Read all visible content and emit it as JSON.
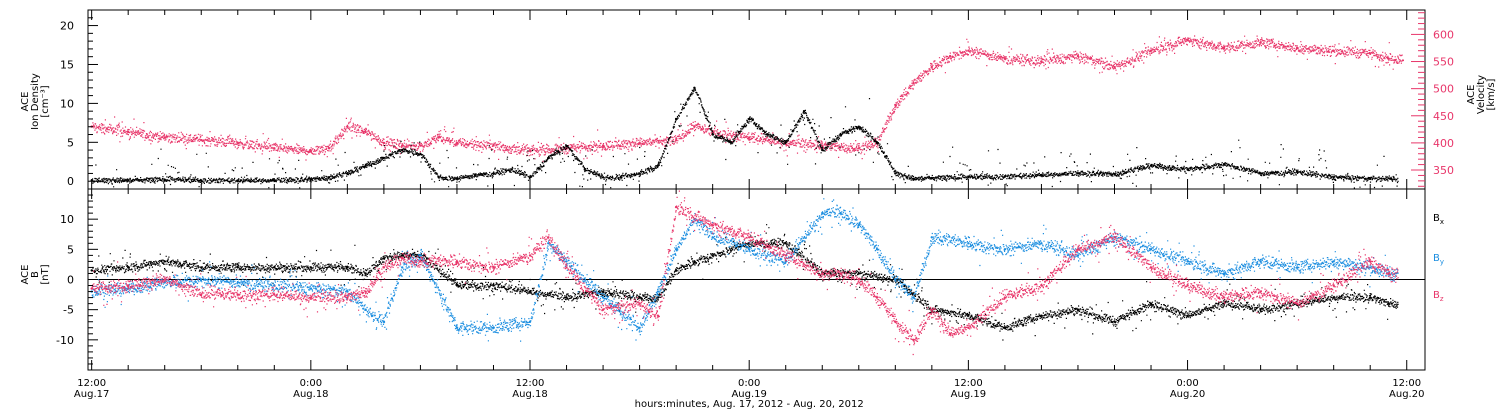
{
  "colors": {
    "density": "#000000",
    "velocity": "#e8366a",
    "bx": "#000000",
    "by": "#1c8ee0",
    "bz": "#e8366a",
    "axis": "#000000"
  },
  "x_axis": {
    "title": "hours:minutes, Aug. 17, 2012 - Aug. 20, 2012",
    "range_hours": [
      -0.2,
      73
    ],
    "ticks": [
      {
        "hour": 0,
        "time": "12:00",
        "date": "Aug.17"
      },
      {
        "hour": 12,
        "time": "0:00",
        "date": "Aug.18"
      },
      {
        "hour": 24,
        "time": "12:00",
        "date": "Aug.18"
      },
      {
        "hour": 36,
        "time": "0:00",
        "date": "Aug.19"
      },
      {
        "hour": 48,
        "time": "12:00",
        "date": "Aug.19"
      },
      {
        "hour": 60,
        "time": "0:00",
        "date": "Aug.20"
      },
      {
        "hour": 72,
        "time": "12:00",
        "date": "Aug.20"
      }
    ],
    "minor_step_hours": 2,
    "ticklabel_texts": [
      "12:00",
      "Aug.17",
      "0:00",
      "Aug.18",
      "12:00",
      "Aug.18",
      "0:00",
      "Aug.19",
      "12:00",
      "Aug.19",
      "0:00",
      "Aug.20",
      "12:00",
      "Aug.20"
    ]
  },
  "chart_data": [
    {
      "type": "scatter",
      "panel": "top",
      "ylabel_lines": [
        "ACE",
        "Ion Density",
        "[cm⁻³]"
      ],
      "ylim": [
        -1,
        22
      ],
      "yticks": [
        0,
        5,
        10,
        15,
        20
      ],
      "ytick_labels": [
        "0",
        "5",
        "10",
        "15",
        "20"
      ],
      "grid": false,
      "series": [
        {
          "key": "density",
          "color": "#000000",
          "x": [
            0,
            2,
            4,
            6,
            8,
            10,
            12,
            13,
            14,
            15,
            16,
            17,
            18,
            19,
            20,
            21,
            22,
            23,
            24,
            25,
            26,
            27,
            28,
            29,
            30,
            31,
            32,
            33,
            34,
            35,
            36,
            37,
            38,
            39,
            40,
            41,
            42,
            43,
            44,
            45,
            46,
            48,
            50,
            52,
            54,
            56,
            58,
            60,
            62,
            64,
            66,
            68,
            70
          ],
          "y": [
            0.1,
            0.1,
            0.2,
            0.1,
            0.1,
            0.1,
            0.2,
            0.5,
            1.0,
            2.0,
            3.0,
            4.0,
            3.5,
            0.5,
            0.3,
            0.8,
            1.0,
            1.5,
            0.5,
            3.0,
            4.5,
            1.5,
            0.5,
            0.5,
            1.0,
            2.0,
            8.0,
            12.0,
            6.0,
            5.0,
            8.0,
            6.0,
            5.0,
            9.0,
            4.0,
            6.0,
            7.0,
            5.0,
            1.0,
            0.3,
            0.4,
            0.5,
            0.6,
            0.8,
            1.0,
            0.9,
            2.0,
            1.5,
            2.2,
            1.0,
            1.2,
            0.5,
            0.3
          ]
        }
      ],
      "right_axis": {
        "ylabel_lines": [
          "ACE",
          "Velocity",
          "[km/s]"
        ],
        "ylim": [
          315,
          645
        ],
        "yticks": [
          350,
          400,
          450,
          500,
          550,
          600
        ],
        "ytick_labels": [
          "350",
          "400",
          "450",
          "500",
          "550",
          "600"
        ],
        "series": [
          {
            "key": "velocity",
            "color": "#e8366a",
            "x": [
              0,
              2,
              4,
              6,
              8,
              10,
              12,
              13,
              14,
              15,
              16,
              17,
              18,
              19,
              20,
              22,
              24,
              26,
              28,
              30,
              32,
              33,
              34,
              36,
              38,
              40,
              42,
              43,
              44,
              45,
              46,
              47,
              48,
              50,
              52,
              54,
              56,
              58,
              60,
              62,
              64,
              66,
              68,
              70,
              71
            ],
            "y": [
              430,
              420,
              410,
              405,
              400,
              390,
              385,
              390,
              430,
              420,
              400,
              395,
              395,
              410,
              400,
              395,
              385,
              390,
              395,
              400,
              405,
              430,
              420,
              410,
              400,
              395,
              390,
              400,
              470,
              510,
              540,
              560,
              570,
              555,
              550,
              560,
              540,
              570,
              590,
              575,
              585,
              575,
              570,
              565,
              555
            ]
          }
        ]
      }
    },
    {
      "type": "scatter",
      "panel": "bottom",
      "ylabel_lines": [
        "ACE",
        "B",
        "[nT]"
      ],
      "ylim": [
        -15,
        15
      ],
      "yticks": [
        -10,
        -5,
        0,
        5,
        10
      ],
      "ytick_labels": [
        "-10",
        "-5",
        "0",
        "5",
        "10"
      ],
      "zero_line": true,
      "grid": false,
      "series": [
        {
          "key": "bx",
          "name": "Bₓ",
          "color": "#000000",
          "x": [
            0,
            2,
            4,
            6,
            8,
            10,
            12,
            14,
            15,
            16,
            17,
            18,
            20,
            22,
            24,
            26,
            28,
            30,
            31,
            32,
            33,
            34,
            36,
            38,
            40,
            42,
            44,
            46,
            48,
            50,
            52,
            54,
            56,
            58,
            60,
            62,
            64,
            66,
            68,
            70,
            71
          ],
          "y": [
            1.5,
            2.0,
            3.0,
            2.0,
            2.0,
            2.0,
            2.0,
            2.0,
            1.0,
            3.5,
            4.0,
            4.0,
            -1.0,
            -1.0,
            -2.0,
            -3.0,
            -2.0,
            -3.0,
            -3.0,
            1.5,
            3.0,
            4.0,
            6.0,
            6.0,
            1.0,
            1.0,
            0.0,
            -5.0,
            -6.0,
            -8.0,
            -6.0,
            -5.0,
            -7.0,
            -4.0,
            -6.0,
            -4.0,
            -5.0,
            -4.0,
            -3.0,
            -3.0,
            -4.0
          ]
        },
        {
          "key": "by",
          "name": "B_y",
          "color": "#1c8ee0",
          "x": [
            0,
            2,
            4,
            6,
            8,
            10,
            12,
            14,
            15,
            16,
            17,
            18,
            20,
            22,
            24,
            25,
            26,
            28,
            30,
            31,
            32,
            33,
            34,
            36,
            38,
            40,
            41,
            42,
            43,
            44,
            45,
            46,
            48,
            50,
            52,
            54,
            56,
            58,
            60,
            62,
            64,
            66,
            68,
            70,
            71
          ],
          "y": [
            -2.0,
            -1.5,
            -0.5,
            0.0,
            -0.5,
            -1.0,
            -1.5,
            -2.0,
            -5.0,
            -7.0,
            2.0,
            4.0,
            -8.0,
            -8.0,
            -7.0,
            6.0,
            3.0,
            -3.0,
            -8.0,
            -2.0,
            5.0,
            10.0,
            7.0,
            5.0,
            3.0,
            11.0,
            11.0,
            9.0,
            5.0,
            0.0,
            -3.0,
            7.0,
            6.0,
            5.0,
            6.0,
            4.0,
            7.0,
            5.0,
            3.0,
            1.0,
            3.0,
            2.0,
            3.0,
            2.0,
            1.0
          ]
        },
        {
          "key": "bz",
          "name": "B_z",
          "color": "#e8366a",
          "x": [
            0,
            2,
            4,
            6,
            8,
            10,
            12,
            14,
            15,
            16,
            17,
            18,
            20,
            22,
            24,
            25,
            26,
            28,
            30,
            31,
            32,
            34,
            36,
            38,
            40,
            41,
            42,
            43,
            44,
            45,
            46,
            47,
            48,
            50,
            52,
            54,
            56,
            58,
            60,
            62,
            64,
            66,
            68,
            70,
            71
          ],
          "y": [
            -1.5,
            -1.0,
            0.0,
            -2.5,
            -2.5,
            -2.5,
            -3.0,
            -3.0,
            -2.0,
            2.0,
            3.5,
            3.0,
            3.0,
            2.0,
            4.0,
            7.0,
            2.0,
            -5.0,
            -4.0,
            -6.0,
            12.0,
            9.0,
            7.0,
            4.0,
            1.0,
            1.0,
            0.0,
            -3.0,
            -7.0,
            -10.0,
            -5.0,
            -9.0,
            -8.0,
            -3.0,
            -1.0,
            5.0,
            7.0,
            2.0,
            -1.0,
            -3.0,
            -2.0,
            -4.0,
            -1.0,
            3.0,
            1.0
          ]
        }
      ],
      "legend": {
        "placement": "right",
        "entries": [
          {
            "base": "B",
            "sub": "x",
            "color": "#000000"
          },
          {
            "base": "B",
            "sub": "y",
            "color": "#1c8ee0"
          },
          {
            "base": "B",
            "sub": "z",
            "color": "#e8366a"
          }
        ]
      }
    }
  ]
}
